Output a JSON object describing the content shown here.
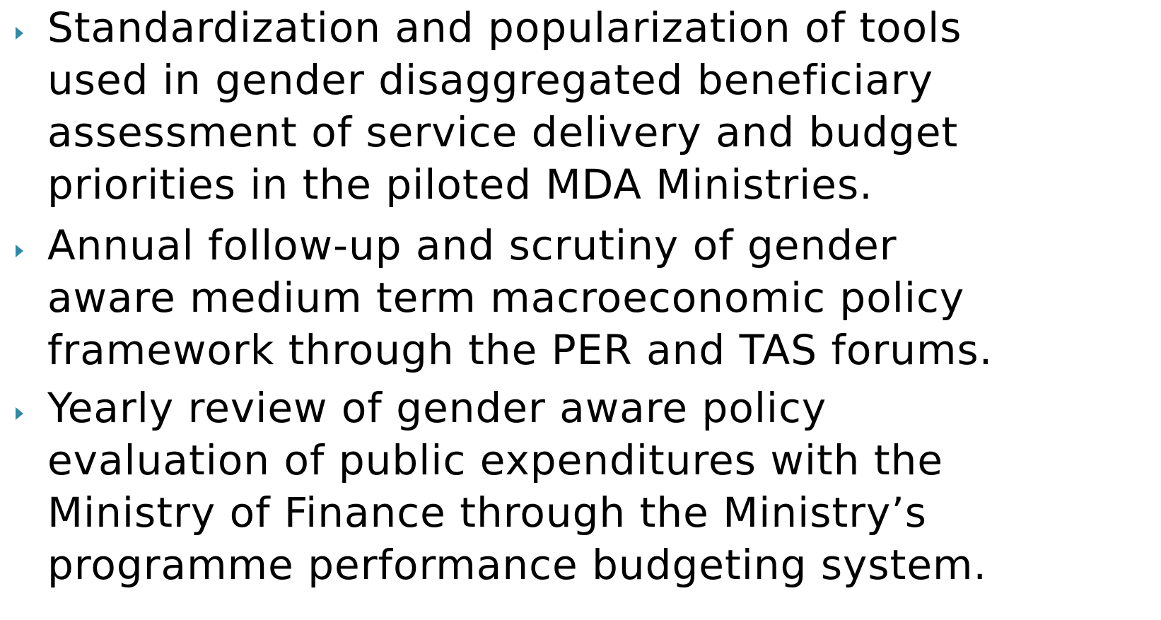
{
  "bullets": [
    {
      "lines": [
        "Standardization and popularization of tools",
        "used in gender disaggregated beneficiary",
        "assessment of service delivery and budget",
        "priorities in the piloted MDA Ministries."
      ]
    },
    {
      "lines": [
        "Annual follow-up and scrutiny of gender",
        "aware medium term macroeconomic policy",
        "framework through the PER and TAS forums."
      ]
    },
    {
      "lines": [
        "Yearly review of gender aware policy",
        "evaluation of public expenditures with the",
        "Ministry of Finance through the Ministry’s",
        "programme performance budgeting system."
      ]
    }
  ]
}
